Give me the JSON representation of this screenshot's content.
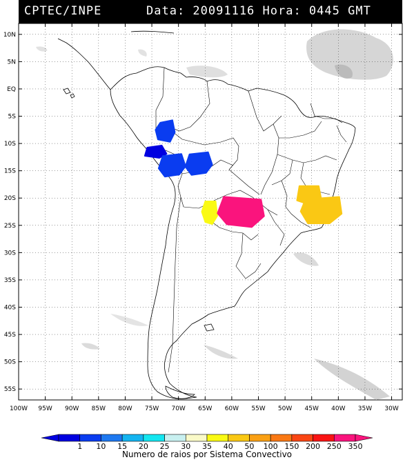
{
  "header": {
    "agency": "CPTEC/INPE",
    "datetime": "Data: 20091116 Hora: 0445 GMT"
  },
  "map": {
    "lat_labels": [
      "10N",
      "5N",
      "EQ",
      "5S",
      "10S",
      "15S",
      "20S",
      "25S",
      "30S",
      "35S",
      "40S",
      "45S",
      "50S",
      "55S"
    ],
    "lon_labels": [
      "100W",
      "95W",
      "90W",
      "85W",
      "80W",
      "75W",
      "70W",
      "65W",
      "60W",
      "55W",
      "50W",
      "45W",
      "40W",
      "35W",
      "30W"
    ],
    "lat_range": [
      12,
      -57
    ],
    "lon_range": [
      -100,
      -28
    ]
  },
  "colorbar": {
    "title": "Numero de raios por Sistema Convectivo",
    "labels": [
      "1",
      "10",
      "15",
      "20",
      "25",
      "30",
      "35",
      "40",
      "50",
      "100",
      "150",
      "200",
      "250",
      "350"
    ],
    "colors": [
      "#0000e0",
      "#0a3cf0",
      "#1e78f0",
      "#14b4f0",
      "#14e6f0",
      "#c8f0f0",
      "#fafac8",
      "#fafa14",
      "#fac814",
      "#faa014",
      "#fa7814",
      "#fa4614",
      "#fa1414",
      "#fa147d"
    ]
  },
  "convective_systems": [
    {
      "color": "#0a3cf0",
      "lon": -72.5,
      "lat": -7.5
    },
    {
      "color": "#0000e0",
      "lon": -74.5,
      "lat": -11.5
    },
    {
      "color": "#0a3cf0",
      "lon": -71,
      "lat": -13.8
    },
    {
      "color": "#0a3cf0",
      "lon": -66,
      "lat": -13.5
    },
    {
      "color": "#fafa14",
      "lon": -64,
      "lat": -22.5
    },
    {
      "color": "#fa147d",
      "lon": -58,
      "lat": -22.3
    },
    {
      "color": "#fac814",
      "lon": -45.5,
      "lat": -19.3
    },
    {
      "color": "#fac814",
      "lon": -43,
      "lat": -22
    }
  ]
}
